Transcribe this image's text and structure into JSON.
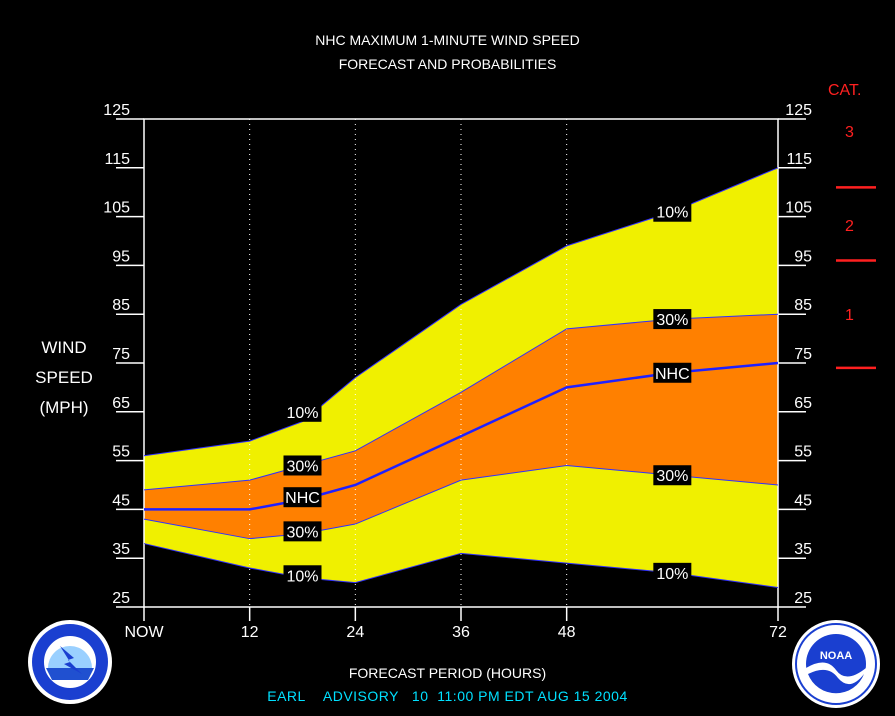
{
  "header": {
    "title_line1": "NHC MAXIMUM 1-MINUTE WIND SPEED",
    "title_line2": "FORECAST AND PROBABILITIES"
  },
  "axis": {
    "ylabel_line1": "WIND",
    "ylabel_line2": "SPEED",
    "ylabel_line3": "(MPH)",
    "xlabel": "FORECAST PERIOD (HOURS)"
  },
  "category": {
    "title": "CAT.",
    "labels": [
      "3",
      "2",
      "1"
    ],
    "color": "#ff2020"
  },
  "footer": {
    "storm": "EARL",
    "advisory_label": "ADVISORY",
    "advisory_number": "10",
    "datetime": "11:00 PM EDT AUG 15 2004"
  },
  "chart_data": {
    "type": "area",
    "x": [
      0,
      12,
      18,
      24,
      36,
      48,
      60,
      72
    ],
    "x_ticks": [
      0,
      12,
      24,
      36,
      48,
      72
    ],
    "x_tick_labels": [
      "NOW",
      "12",
      "24",
      "36",
      "48",
      "72"
    ],
    "y_ticks": [
      25,
      35,
      45,
      55,
      65,
      75,
      85,
      95,
      105,
      115,
      125
    ],
    "ylim": [
      25,
      125
    ],
    "xlim": [
      0,
      72
    ],
    "series": [
      {
        "name": "10%",
        "values": [
          56,
          59,
          63,
          72,
          87,
          99,
          106,
          115
        ],
        "color": "#f0f000"
      },
      {
        "name": "30%",
        "values": [
          49,
          51,
          54,
          57,
          69,
          82,
          84,
          85
        ],
        "color": "#ff8000"
      },
      {
        "name": "NHC",
        "values": [
          45,
          45,
          47,
          50,
          60,
          70,
          73,
          75
        ],
        "color": "#2020ff"
      },
      {
        "name": "30%",
        "values": [
          43,
          39,
          40,
          42,
          51,
          54,
          52,
          50
        ],
        "color": "#ff8000"
      },
      {
        "name": "10%",
        "values": [
          38,
          33,
          31,
          30,
          36,
          34,
          32,
          29
        ],
        "color": "#f0f000"
      }
    ],
    "labels": [
      {
        "text": "10%",
        "x": 18,
        "y": 65
      },
      {
        "text": "30%",
        "x": 18,
        "y": 54
      },
      {
        "text": "NHC",
        "x": 18,
        "y": 47.5
      },
      {
        "text": "30%",
        "x": 18,
        "y": 40.5
      },
      {
        "text": "10%",
        "x": 18,
        "y": 31.5
      },
      {
        "text": "10%",
        "x": 60,
        "y": 106
      },
      {
        "text": "30%",
        "x": 60,
        "y": 84
      },
      {
        "text": "NHC",
        "x": 60,
        "y": 73
      },
      {
        "text": "30%",
        "x": 60,
        "y": 52
      },
      {
        "text": "10%",
        "x": 60,
        "y": 32
      }
    ],
    "category_thresholds": [
      111,
      96,
      74
    ],
    "grid": "vertical-dotted"
  }
}
